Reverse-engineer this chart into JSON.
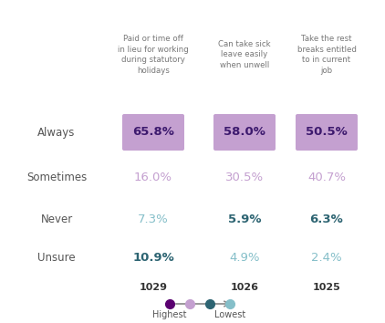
{
  "col_headers": [
    "Paid or time off\nin lieu for working\nduring statutory\nholidays",
    "Can take sick\nleave easily\nwhen unwell",
    "Take the rest\nbreaks entitled\nto in current\njob"
  ],
  "row_labels": [
    "Always",
    "Sometimes",
    "Never",
    "Unsure"
  ],
  "values": [
    [
      "65.8%",
      "58.0%",
      "50.5%"
    ],
    [
      "16.0%",
      "30.5%",
      "40.7%"
    ],
    [
      "7.3%",
      "5.9%",
      "6.3%"
    ],
    [
      "10.9%",
      "4.9%",
      "2.4%"
    ]
  ],
  "n_values": [
    "1029",
    "1026",
    "1025"
  ],
  "background_color": "#ffffff",
  "col_header_color": "#777777",
  "row_label_color": "#555555",
  "n_label_color": "#333333",
  "box_color": "#c4a0d0",
  "always_text_color": "#3d1a6e",
  "sometimes_colors": [
    "#c4a0d0",
    "#c4a0d0",
    "#c4a0d0"
  ],
  "never_colors": [
    "#85bfc9",
    "#2d6472",
    "#2d6472"
  ],
  "unsure_colors": [
    "#2d6472",
    "#85bfc9",
    "#85bfc9"
  ],
  "unsure_bold": [
    true,
    false,
    false
  ],
  "never_bold": [
    false,
    true,
    true
  ],
  "legend_dots": [
    "#5a0070",
    "#c4a0d0",
    "#2d6472",
    "#85bfc9"
  ],
  "legend_dot_labels": [
    "Highest",
    "",
    "",
    "Lowest"
  ]
}
